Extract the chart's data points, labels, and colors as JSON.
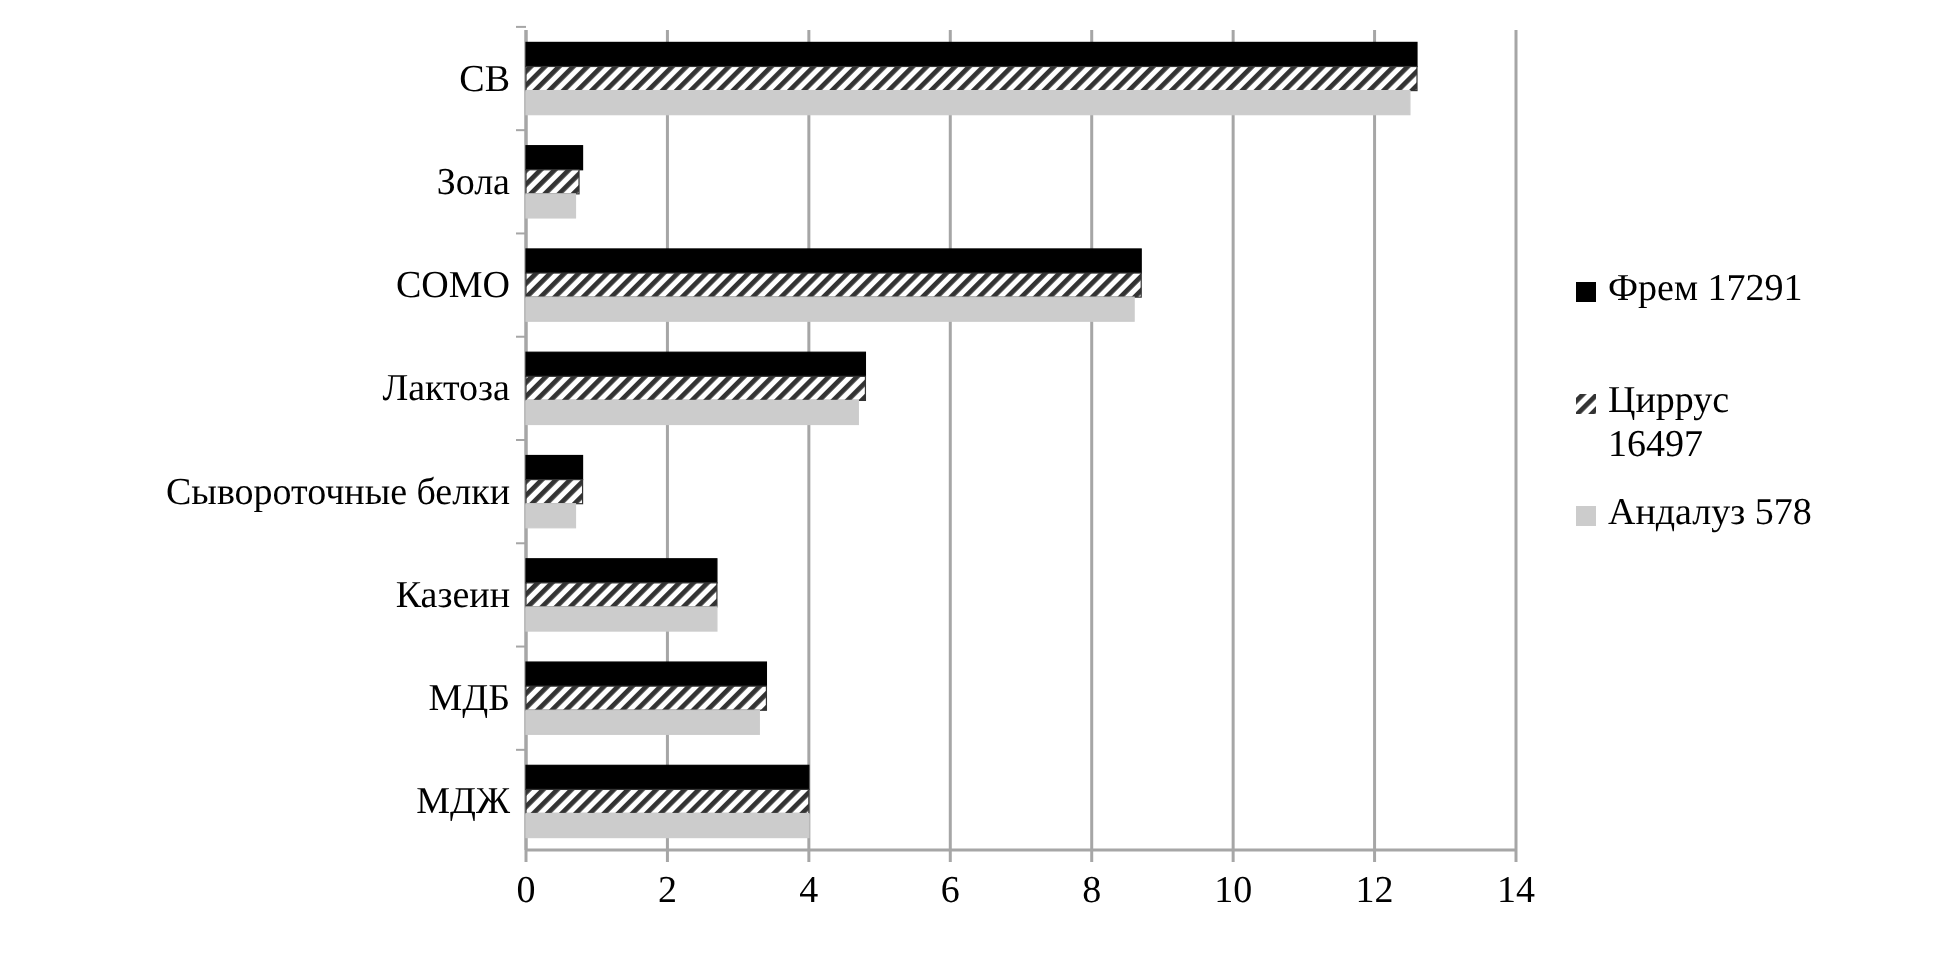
{
  "chart_data": {
    "type": "bar",
    "orientation": "horizontal",
    "categories": [
      "СВ",
      "Зола",
      "СОМО",
      "Лактоза",
      "Сывороточные белки",
      "Казеин",
      "МДБ",
      "МДЖ"
    ],
    "series": [
      {
        "name": "Фрем 17291",
        "color": "#000000",
        "values": [
          12.6,
          0.8,
          8.7,
          4.8,
          0.8,
          2.7,
          3.4,
          4.0
        ]
      },
      {
        "name": "Циррус 16497",
        "color": "#333333",
        "values": [
          12.6,
          0.75,
          8.7,
          4.8,
          0.8,
          2.7,
          3.4,
          4.0
        ]
      },
      {
        "name": "Андалуз 578",
        "color": "#cccccc",
        "values": [
          12.5,
          0.7,
          8.6,
          4.7,
          0.7,
          2.7,
          3.3,
          4.0
        ]
      }
    ],
    "xlim": [
      0,
      14
    ],
    "xticks": [
      0,
      2,
      4,
      6,
      8,
      10,
      12,
      14
    ],
    "grid": "x",
    "legend": "right"
  }
}
